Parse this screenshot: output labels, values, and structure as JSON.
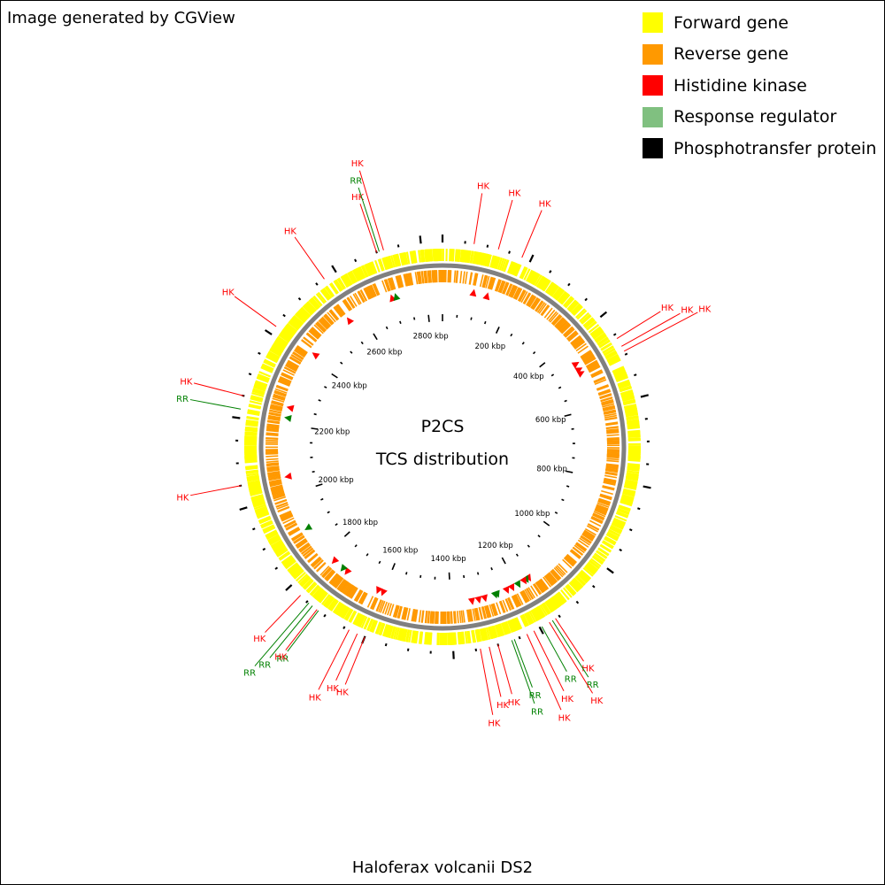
{
  "credit": "Image generated by CGView",
  "legend": [
    {
      "label": "Forward gene",
      "color": "#ffff00"
    },
    {
      "label": "Reverse gene",
      "color": "#ff9900"
    },
    {
      "label": "Histidine kinase",
      "color": "#ff0000"
    },
    {
      "label": "Response regulator",
      "color": "#80c080"
    },
    {
      "label": "Phosphotransfer protein",
      "color": "#000000"
    }
  ],
  "center": {
    "line1": "P2CS",
    "line2": "TCS distribution"
  },
  "organism": "Haloferax volcanii DS2",
  "genome_length_kbp": 2848,
  "axis_labels": [
    {
      "kbp": 200,
      "label": "200 kbp"
    },
    {
      "kbp": 400,
      "label": "400 kbp"
    },
    {
      "kbp": 600,
      "label": "600 kbp"
    },
    {
      "kbp": 800,
      "label": "800 kbp"
    },
    {
      "kbp": 1000,
      "label": "1000 kbp"
    },
    {
      "kbp": 1200,
      "label": "1200 kbp"
    },
    {
      "kbp": 1400,
      "label": "1400 kbp"
    },
    {
      "kbp": 1600,
      "label": "1600 kbp"
    },
    {
      "kbp": 1800,
      "label": "1800 kbp"
    },
    {
      "kbp": 2000,
      "label": "2000 kbp"
    },
    {
      "kbp": 2200,
      "label": "2200 kbp"
    },
    {
      "kbp": 2400,
      "label": "2400 kbp"
    },
    {
      "kbp": 2600,
      "label": "2600 kbp"
    },
    {
      "kbp": 2800,
      "label": "2800 kbp"
    }
  ],
  "callouts": [
    {
      "kbp": 70,
      "type": "HK"
    },
    {
      "kbp": 125,
      "type": "HK"
    },
    {
      "kbp": 180,
      "type": "HK"
    },
    {
      "kbp": 460,
      "type": "HK"
    },
    {
      "kbp": 480,
      "type": "HK"
    },
    {
      "kbp": 492,
      "type": "HK"
    },
    {
      "kbp": 1160,
      "type": "HK"
    },
    {
      "kbp": 1168,
      "type": "RR"
    },
    {
      "kbp": 1176,
      "type": "HK"
    },
    {
      "kbp": 1195,
      "type": "RR"
    },
    {
      "kbp": 1215,
      "type": "HK"
    },
    {
      "kbp": 1232,
      "type": "HK"
    },
    {
      "kbp": 1262,
      "type": "RR"
    },
    {
      "kbp": 1268,
      "type": "RR"
    },
    {
      "kbp": 1300,
      "type": "HK"
    },
    {
      "kbp": 1320,
      "type": "HK"
    },
    {
      "kbp": 1340,
      "type": "HK"
    },
    {
      "kbp": 1600,
      "type": "HK"
    },
    {
      "kbp": 1618,
      "type": "HK"
    },
    {
      "kbp": 1638,
      "type": "HK"
    },
    {
      "kbp": 1718,
      "type": "RR"
    },
    {
      "kbp": 1722,
      "type": "HK"
    },
    {
      "kbp": 1735,
      "type": "RR"
    },
    {
      "kbp": 1745,
      "type": "RR"
    },
    {
      "kbp": 1770,
      "type": "HK"
    },
    {
      "kbp": 2050,
      "type": "HK"
    },
    {
      "kbp": 2220,
      "type": "RR"
    },
    {
      "kbp": 2250,
      "type": "HK"
    },
    {
      "kbp": 2420,
      "type": "HK"
    },
    {
      "kbp": 2570,
      "type": "HK"
    },
    {
      "kbp": 2700,
      "type": "HK"
    },
    {
      "kbp": 2706,
      "type": "RR"
    },
    {
      "kbp": 2716,
      "type": "HK"
    }
  ],
  "tcs_markers": [
    {
      "kbp": 90,
      "type": "HK"
    },
    {
      "kbp": 130,
      "type": "HK"
    },
    {
      "kbp": 460,
      "type": "HK"
    },
    {
      "kbp": 478,
      "type": "HK"
    },
    {
      "kbp": 490,
      "type": "HK"
    },
    {
      "kbp": 1160,
      "type": "HK"
    },
    {
      "kbp": 1168,
      "type": "RR"
    },
    {
      "kbp": 1175,
      "type": "HK"
    },
    {
      "kbp": 1195,
      "type": "RR"
    },
    {
      "kbp": 1215,
      "type": "HK"
    },
    {
      "kbp": 1232,
      "type": "HK"
    },
    {
      "kbp": 1262,
      "type": "RR"
    },
    {
      "kbp": 1268,
      "type": "RR"
    },
    {
      "kbp": 1300,
      "type": "HK"
    },
    {
      "kbp": 1318,
      "type": "HK"
    },
    {
      "kbp": 1338,
      "type": "HK"
    },
    {
      "kbp": 1600,
      "type": "HK"
    },
    {
      "kbp": 1615,
      "type": "HK"
    },
    {
      "kbp": 1720,
      "type": "HK"
    },
    {
      "kbp": 1735,
      "type": "RR"
    },
    {
      "kbp": 1768,
      "type": "HK"
    },
    {
      "kbp": 1890,
      "type": "RR"
    },
    {
      "kbp": 2050,
      "type": "HK"
    },
    {
      "kbp": 2220,
      "type": "RR"
    },
    {
      "kbp": 2250,
      "type": "HK"
    },
    {
      "kbp": 2420,
      "type": "HK"
    },
    {
      "kbp": 2560,
      "type": "HK"
    },
    {
      "kbp": 2700,
      "type": "HK"
    },
    {
      "kbp": 2712,
      "type": "RR"
    }
  ],
  "colors": {
    "hk_label": "#ff0000",
    "rr_label": "#008000",
    "backbone": "#808080"
  }
}
